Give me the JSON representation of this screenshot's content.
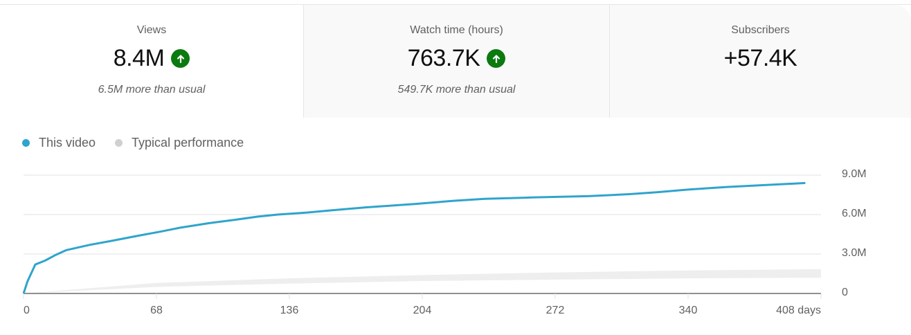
{
  "cards": [
    {
      "label": "Views",
      "value": "8.4M",
      "trend": "up",
      "note": "6.5M more than usual",
      "selected": true
    },
    {
      "label": "Watch time (hours)",
      "value": "763.7K",
      "trend": "up",
      "note": "549.7K more than usual",
      "selected": false
    },
    {
      "label": "Subscribers",
      "value": "+57.4K",
      "trend": null,
      "note": "",
      "selected": false
    }
  ],
  "legend": {
    "this_video": "This video",
    "typical": "Typical performance"
  },
  "colors": {
    "this_video": "#2fa4cc",
    "typical": "#d0d0d0",
    "typical_band": "#eeeeee",
    "up_badge": "#0b7a0f"
  },
  "axis": {
    "y_ticks": [
      "9.0M",
      "6.0M",
      "3.0M",
      "0"
    ],
    "x_ticks": [
      "0",
      "68",
      "136",
      "204",
      "272",
      "340",
      "408 days"
    ]
  },
  "chart_data": {
    "type": "line",
    "title": "Views",
    "xlabel": "days",
    "ylabel": "",
    "xlim": [
      0,
      408
    ],
    "ylim": [
      0,
      9000000
    ],
    "grid": true,
    "legend_position": "top-left",
    "x_ticks": [
      0,
      68,
      136,
      204,
      272,
      340,
      408
    ],
    "y_ticks": [
      0,
      3000000,
      6000000,
      9000000
    ],
    "series": [
      {
        "name": "This video",
        "x": [
          0,
          2,
          6,
          11,
          16,
          22,
          34,
          45,
          59,
          70,
          80,
          95,
          108,
          120,
          130,
          145,
          156,
          175,
          200,
          220,
          236,
          260,
          289,
          310,
          324,
          340,
          360,
          380,
          400
        ],
        "values": [
          0,
          900000,
          2200000,
          2500000,
          2900000,
          3300000,
          3700000,
          4000000,
          4400000,
          4700000,
          5000000,
          5350000,
          5600000,
          5850000,
          6000000,
          6150000,
          6300000,
          6550000,
          6800000,
          7050000,
          7200000,
          7300000,
          7400000,
          7550000,
          7700000,
          7900000,
          8100000,
          8250000,
          8400000
        ]
      },
      {
        "name": "Typical performance",
        "type": "band",
        "x": [
          0,
          68,
          136,
          204,
          272,
          340,
          408
        ],
        "lower": [
          0,
          500000,
          750000,
          950000,
          1050000,
          1150000,
          1200000
        ],
        "upper": [
          0,
          800000,
          1150000,
          1400000,
          1600000,
          1750000,
          1850000
        ]
      }
    ]
  }
}
